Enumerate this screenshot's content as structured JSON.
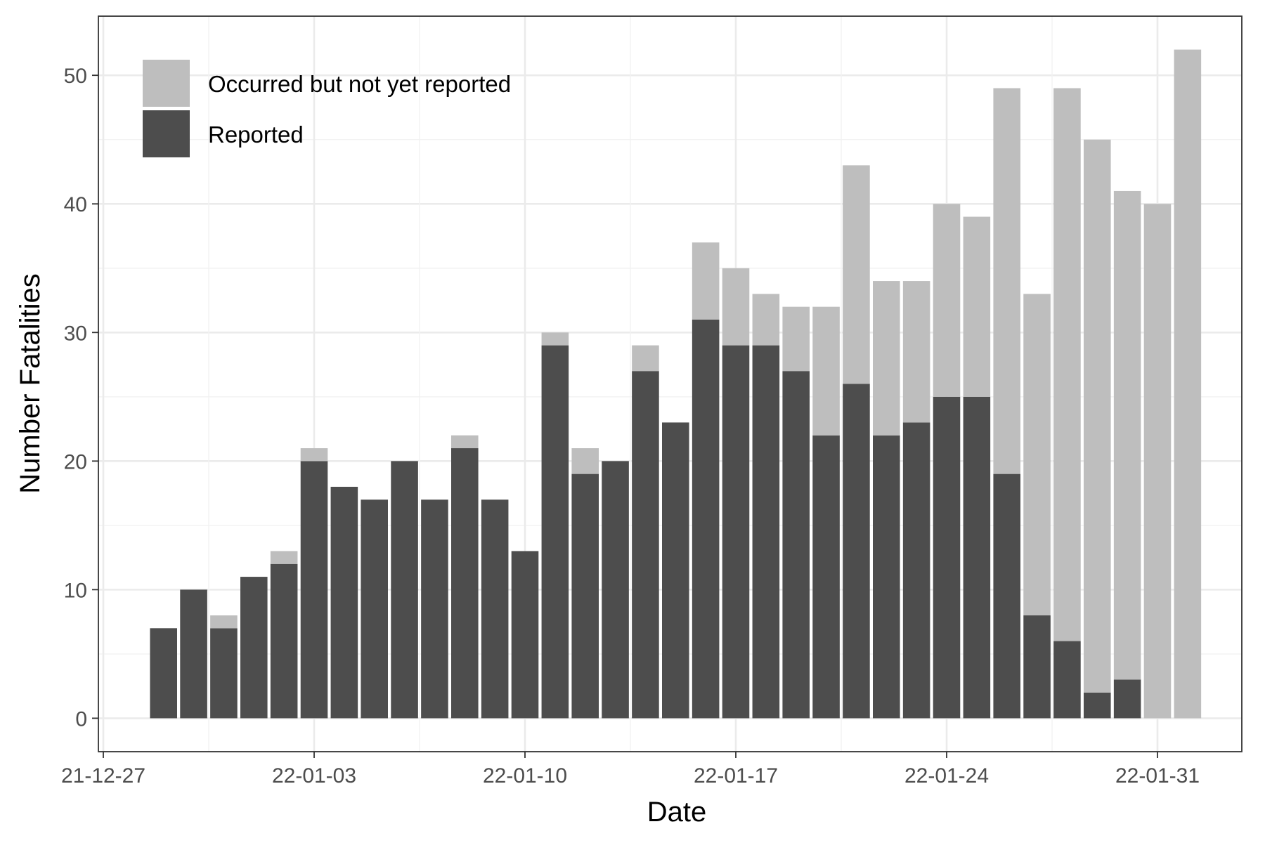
{
  "chart_data": {
    "type": "bar",
    "stacked": true,
    "title": "",
    "xlabel": "Date",
    "ylabel": "Number Fatalities",
    "x_tick_labels": [
      "21-12-27",
      "22-01-03",
      "22-01-10",
      "22-01-17",
      "22-01-24",
      "22-01-31"
    ],
    "x_tick_dates": [
      "2021-12-27",
      "2022-01-03",
      "2022-01-10",
      "2022-01-17",
      "2022-01-24",
      "2022-01-31"
    ],
    "x_range": [
      "2021-12-27",
      "2022-02-03"
    ],
    "y_ticks": [
      0,
      10,
      20,
      30,
      40,
      50
    ],
    "ylim": [
      -2.6,
      54.6
    ],
    "grid": true,
    "legend_position": "top-left",
    "dates": [
      "2021-12-29",
      "2021-12-30",
      "2021-12-31",
      "2022-01-01",
      "2022-01-02",
      "2022-01-03",
      "2022-01-04",
      "2022-01-05",
      "2022-01-06",
      "2022-01-07",
      "2022-01-08",
      "2022-01-09",
      "2022-01-10",
      "2022-01-11",
      "2022-01-12",
      "2022-01-13",
      "2022-01-14",
      "2022-01-15",
      "2022-01-16",
      "2022-01-17",
      "2022-01-18",
      "2022-01-19",
      "2022-01-20",
      "2022-01-21",
      "2022-01-22",
      "2022-01-23",
      "2022-01-24",
      "2022-01-25",
      "2022-01-26",
      "2022-01-27",
      "2022-01-28",
      "2022-01-29",
      "2022-01-30",
      "2022-01-31",
      "2022-02-01"
    ],
    "series": [
      {
        "name": "Reported",
        "color": "#4d4d4d",
        "values": [
          7,
          10,
          7,
          11,
          12,
          20,
          18,
          17,
          20,
          17,
          21,
          17,
          13,
          29,
          19,
          20,
          27,
          23,
          31,
          29,
          29,
          27,
          22,
          26,
          22,
          23,
          25,
          25,
          19,
          8,
          6,
          2,
          3,
          0,
          0
        ]
      },
      {
        "name": "Occurred but not yet reported",
        "color": "#bebebe",
        "values": [
          0,
          0,
          1,
          0,
          1,
          1,
          0,
          0,
          0,
          0,
          1,
          0,
          0,
          1,
          2,
          0,
          2,
          0,
          6,
          6,
          4,
          5,
          10,
          17,
          12,
          11,
          15,
          14,
          30,
          25,
          43,
          43,
          38,
          40,
          52
        ]
      }
    ],
    "legend": [
      {
        "label": "Occurred but not yet reported",
        "color": "#bebebe"
      },
      {
        "label": "Reported",
        "color": "#4d4d4d"
      }
    ]
  }
}
